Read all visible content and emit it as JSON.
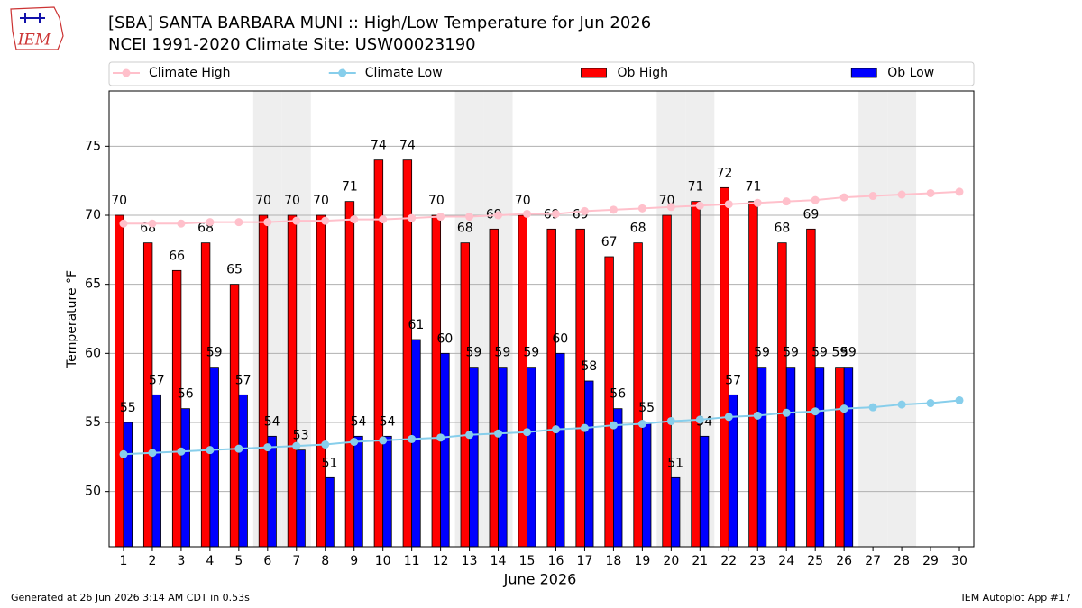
{
  "chart_data": {
    "type": "bar",
    "title": "[SBA] SANTA BARBARA MUNI :: High/Low Temperature for Jun 2026",
    "subtitle": "NCEI 1991-2020 Climate Site: USW00023190",
    "xlabel": "June 2026",
    "ylabel": "Temperature °F",
    "x": [
      1,
      2,
      3,
      4,
      5,
      6,
      7,
      8,
      9,
      10,
      11,
      12,
      13,
      14,
      15,
      16,
      17,
      18,
      19,
      20,
      21,
      22,
      23,
      24,
      25,
      26,
      27,
      28,
      29,
      30
    ],
    "series": [
      {
        "name": "Climate High",
        "kind": "line",
        "color": "#ffc0cb",
        "values": [
          69.4,
          69.4,
          69.4,
          69.5,
          69.5,
          69.5,
          69.6,
          69.6,
          69.7,
          69.7,
          69.8,
          69.9,
          69.9,
          70.0,
          70.1,
          70.1,
          70.3,
          70.4,
          70.5,
          70.6,
          70.7,
          70.8,
          70.9,
          71.0,
          71.1,
          71.3,
          71.4,
          71.5,
          71.6,
          71.7
        ]
      },
      {
        "name": "Climate Low",
        "kind": "line",
        "color": "#87ceeb",
        "values": [
          52.7,
          52.8,
          52.9,
          53.0,
          53.1,
          53.2,
          53.3,
          53.4,
          53.6,
          53.7,
          53.8,
          53.9,
          54.1,
          54.2,
          54.3,
          54.5,
          54.6,
          54.8,
          54.9,
          55.1,
          55.2,
          55.4,
          55.5,
          55.7,
          55.8,
          56.0,
          56.1,
          56.3,
          56.4,
          56.6
        ]
      },
      {
        "name": "Ob High",
        "kind": "bar",
        "color": "#ff0000",
        "values": [
          70,
          68,
          66,
          68,
          65,
          70,
          70,
          70,
          71,
          74,
          74,
          70,
          68,
          69,
          70,
          69,
          69,
          67,
          68,
          70,
          71,
          72,
          71,
          68,
          69,
          59,
          null,
          null,
          null,
          null
        ]
      },
      {
        "name": "Ob Low",
        "kind": "bar",
        "color": "#0000ff",
        "values": [
          55,
          57,
          56,
          59,
          57,
          54,
          53,
          51,
          54,
          54,
          61,
          60,
          59,
          59,
          59,
          60,
          58,
          56,
          55,
          51,
          54,
          57,
          59,
          59,
          59,
          59,
          null,
          null,
          null,
          null
        ]
      }
    ],
    "xlim": [
      0.5,
      30.5
    ],
    "ylim": [
      46,
      79
    ],
    "xticks": [
      1,
      2,
      3,
      4,
      5,
      6,
      7,
      8,
      9,
      10,
      11,
      12,
      13,
      14,
      15,
      16,
      17,
      18,
      19,
      20,
      21,
      22,
      23,
      24,
      25,
      26,
      27,
      28,
      29,
      30
    ],
    "yticks": [
      50,
      55,
      60,
      65,
      70,
      75
    ],
    "grid": true,
    "legend": "top",
    "shaded_days": [
      6,
      7,
      13,
      14,
      20,
      21,
      27,
      28
    ]
  },
  "footer_left": "Generated at 26 Jun 2026 3:14 AM CDT in 0.53s",
  "footer_right": "IEM Autoplot App #17",
  "logo_text": "IEM"
}
